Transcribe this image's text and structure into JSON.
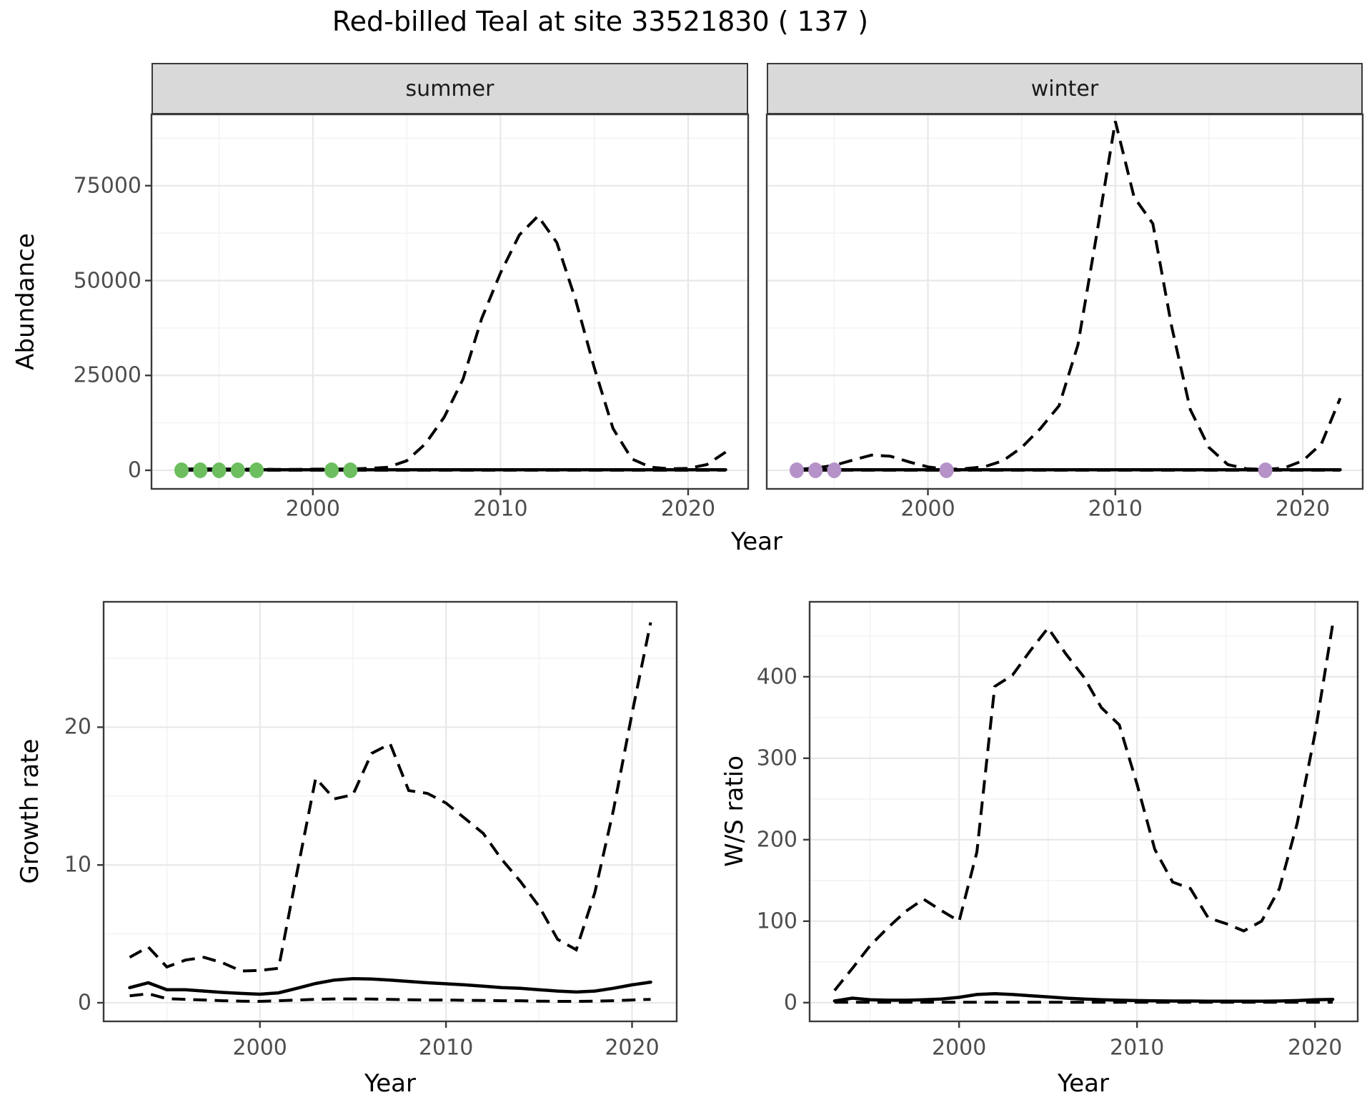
{
  "title": "Red-billed Teal at site 33521830 ( 137 )",
  "colors": {
    "summer_points": "#6CBE5F",
    "winter_points": "#B592C8",
    "line": "#000000",
    "strip_fill": "#D9D9D9",
    "grid_major": "#E8E8E8",
    "grid_minor": "#F1F1F1",
    "panel_border": "#3A3A3A",
    "axis_text": "#4D4D4D"
  },
  "chart_data": [
    {
      "type": "line",
      "id": "abundance",
      "xlabel": "Year",
      "ylabel": "Abundance",
      "facets": [
        "summer",
        "winter"
      ],
      "legend_position": "none",
      "grid": true,
      "x": [
        1993,
        1994,
        1995,
        1996,
        1997,
        1998,
        1999,
        2000,
        2001,
        2002,
        2003,
        2004,
        2005,
        2006,
        2007,
        2008,
        2009,
        2010,
        2011,
        2012,
        2013,
        2014,
        2015,
        2016,
        2017,
        2018,
        2019,
        2020,
        2021,
        2022
      ],
      "xticks": [
        2000,
        2010,
        2020
      ],
      "xticks_minor": [
        1995,
        2005,
        2015
      ],
      "yticks": [
        0,
        25000,
        50000,
        75000
      ],
      "yticks_minor": [
        12500,
        37500,
        62500,
        87500
      ],
      "xlim": [
        1991.4,
        2023.2
      ],
      "ylim": [
        -4900,
        93800
      ],
      "series": {
        "summer": {
          "upper_ci": [
            300,
            400,
            350,
            300,
            300,
            250,
            250,
            300,
            300,
            350,
            500,
            800,
            2500,
            7000,
            14000,
            24000,
            40000,
            52000,
            62000,
            67000,
            60000,
            45000,
            27000,
            11000,
            3000,
            800,
            400,
            500,
            1500,
            4800
          ],
          "mean": [
            150,
            150,
            150,
            150,
            150,
            150,
            150,
            150,
            150,
            150,
            150,
            150,
            150,
            150,
            150,
            150,
            150,
            150,
            150,
            150,
            150,
            150,
            150,
            150,
            150,
            150,
            150,
            150,
            150,
            150
          ],
          "lower_ci": [
            20,
            20,
            20,
            20,
            20,
            20,
            20,
            20,
            20,
            20,
            20,
            20,
            20,
            20,
            20,
            20,
            20,
            20,
            20,
            20,
            20,
            20,
            20,
            20,
            20,
            20,
            20,
            20,
            20,
            20
          ],
          "observed_years": [
            1993,
            1994,
            1995,
            1996,
            1997,
            2001,
            2002
          ],
          "observed_values": [
            0,
            0,
            0,
            0,
            0,
            0,
            0
          ]
        },
        "winter": {
          "upper_ci": [
            250,
            600,
            1300,
            2700,
            4000,
            3700,
            2200,
            900,
            250,
            450,
            900,
            2500,
            6000,
            11000,
            17000,
            33000,
            62000,
            92000,
            72000,
            65000,
            38000,
            16000,
            6000,
            1500,
            400,
            250,
            600,
            2500,
            7000,
            19000
          ],
          "mean": [
            150,
            150,
            150,
            150,
            150,
            150,
            150,
            150,
            150,
            150,
            150,
            150,
            150,
            150,
            150,
            150,
            150,
            150,
            150,
            150,
            150,
            150,
            150,
            150,
            150,
            150,
            150,
            150,
            150,
            150
          ],
          "lower_ci": [
            20,
            20,
            20,
            20,
            20,
            20,
            20,
            20,
            20,
            20,
            20,
            20,
            20,
            20,
            20,
            20,
            20,
            20,
            20,
            20,
            20,
            20,
            20,
            20,
            20,
            20,
            20,
            20,
            20,
            20
          ],
          "observed_years": [
            1993,
            1994,
            1995,
            2001,
            2018
          ],
          "observed_values": [
            0,
            0,
            0,
            0,
            0
          ]
        }
      }
    },
    {
      "type": "line",
      "id": "growth_rate",
      "xlabel": "Year",
      "ylabel": "Growth rate",
      "legend_position": "none",
      "grid": true,
      "x": [
        1993,
        1994,
        1995,
        1996,
        1997,
        1998,
        1999,
        2000,
        2001,
        2002,
        2003,
        2004,
        2005,
        2006,
        2007,
        2008,
        2009,
        2010,
        2011,
        2012,
        2013,
        2014,
        2015,
        2016,
        2017,
        2018,
        2019,
        2020,
        2021
      ],
      "xticks": [
        2000,
        2010,
        2020
      ],
      "xticks_minor": [
        1995,
        2005,
        2015
      ],
      "yticks": [
        0,
        10,
        20
      ],
      "yticks_minor": [
        5,
        15,
        25
      ],
      "xlim": [
        1991.6,
        2022.4
      ],
      "ylim": [
        -1.35,
        29.1
      ],
      "series": {
        "upper_ci": [
          3.3,
          4.05,
          2.6,
          3.1,
          3.3,
          2.9,
          2.3,
          2.35,
          2.5,
          9.5,
          16.3,
          14.8,
          15.1,
          18.1,
          18.8,
          15.4,
          15.2,
          14.5,
          13.4,
          12.3,
          10.4,
          8.8,
          7.0,
          4.6,
          3.85,
          8.0,
          14.0,
          21.0,
          27.6
        ],
        "mean": [
          1.1,
          1.45,
          0.95,
          0.95,
          0.85,
          0.75,
          0.68,
          0.62,
          0.72,
          1.05,
          1.4,
          1.65,
          1.75,
          1.72,
          1.65,
          1.55,
          1.45,
          1.38,
          1.3,
          1.2,
          1.1,
          1.05,
          0.95,
          0.85,
          0.78,
          0.85,
          1.05,
          1.3,
          1.5
        ],
        "lower_ci": [
          0.5,
          0.65,
          0.3,
          0.25,
          0.2,
          0.15,
          0.12,
          0.1,
          0.15,
          0.2,
          0.25,
          0.28,
          0.28,
          0.27,
          0.25,
          0.22,
          0.2,
          0.2,
          0.18,
          0.17,
          0.15,
          0.15,
          0.12,
          0.1,
          0.1,
          0.12,
          0.15,
          0.2,
          0.25
        ]
      }
    },
    {
      "type": "line",
      "id": "ws_ratio",
      "xlabel": "Year",
      "ylabel": "W/S ratio",
      "legend_position": "none",
      "grid": true,
      "x": [
        1993,
        1994,
        1995,
        1996,
        1997,
        1998,
        1999,
        2000,
        2001,
        2002,
        2003,
        2004,
        2005,
        2006,
        2007,
        2008,
        2009,
        2010,
        2011,
        2012,
        2013,
        2014,
        2015,
        2016,
        2017,
        2018,
        2019,
        2020,
        2021
      ],
      "xticks": [
        2000,
        2010,
        2020
      ],
      "xticks_minor": [
        1995,
        2005,
        2015
      ],
      "yticks": [
        0,
        100,
        200,
        300,
        400
      ],
      "yticks_minor": [
        50,
        150,
        250,
        350,
        450
      ],
      "xlim": [
        1991.6,
        2022.4
      ],
      "ylim": [
        -23,
        492
      ],
      "series": {
        "upper_ci": [
          15,
          42,
          70,
          92,
          112,
          127,
          113,
          100,
          185,
          388,
          402,
          432,
          460,
          428,
          400,
          362,
          341,
          268,
          188,
          148,
          140,
          104,
          97,
          88,
          100,
          140,
          220,
          330,
          465
        ],
        "mean": [
          2,
          5.5,
          3.5,
          3,
          3,
          3.5,
          4.5,
          6.5,
          10,
          11,
          10,
          8.5,
          7,
          5.5,
          4.5,
          3.5,
          3,
          2.5,
          2.2,
          2,
          2,
          1.8,
          1.8,
          1.8,
          1.8,
          2,
          2.5,
          3.5,
          4
        ],
        "lower_ci": [
          0.5,
          0.5,
          0.5,
          0.5,
          0.5,
          0.5,
          0.5,
          0.5,
          0.5,
          0.5,
          0.5,
          0.5,
          0.5,
          0.5,
          0.5,
          0.5,
          0.5,
          0.5,
          0.5,
          0.5,
          0.5,
          0.5,
          0.5,
          0.5,
          0.5,
          0.5,
          0.5,
          0.5,
          0.5
        ]
      }
    }
  ]
}
